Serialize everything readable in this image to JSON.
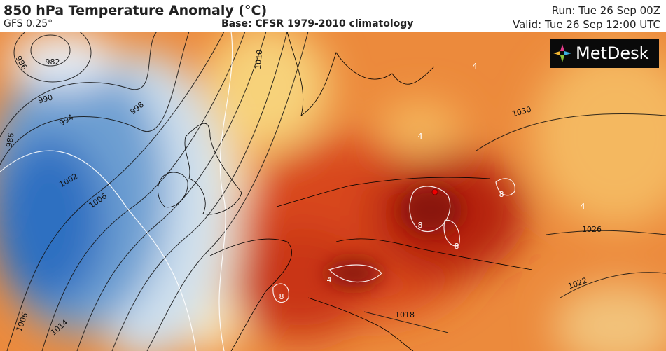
{
  "header": {
    "title": "850 hPa Temperature Anomaly (°C)",
    "model": "GFS 0.25°",
    "base": "Base: CFSR 1979-2010 climatology",
    "run": "Run: Tue 26 Sep 00Z",
    "valid": "Valid: Tue 26 Sep 12:00 UTC"
  },
  "logo": "MetDesk",
  "map": {
    "isobar_labels": [
      982,
      986,
      990,
      994,
      998,
      986,
      1002,
      1006,
      1010,
      1030,
      1026,
      1022,
      1018,
      1014,
      1006
    ],
    "anomaly_labels": [
      4,
      4,
      8,
      8,
      8,
      8,
      4,
      4
    ]
  }
}
